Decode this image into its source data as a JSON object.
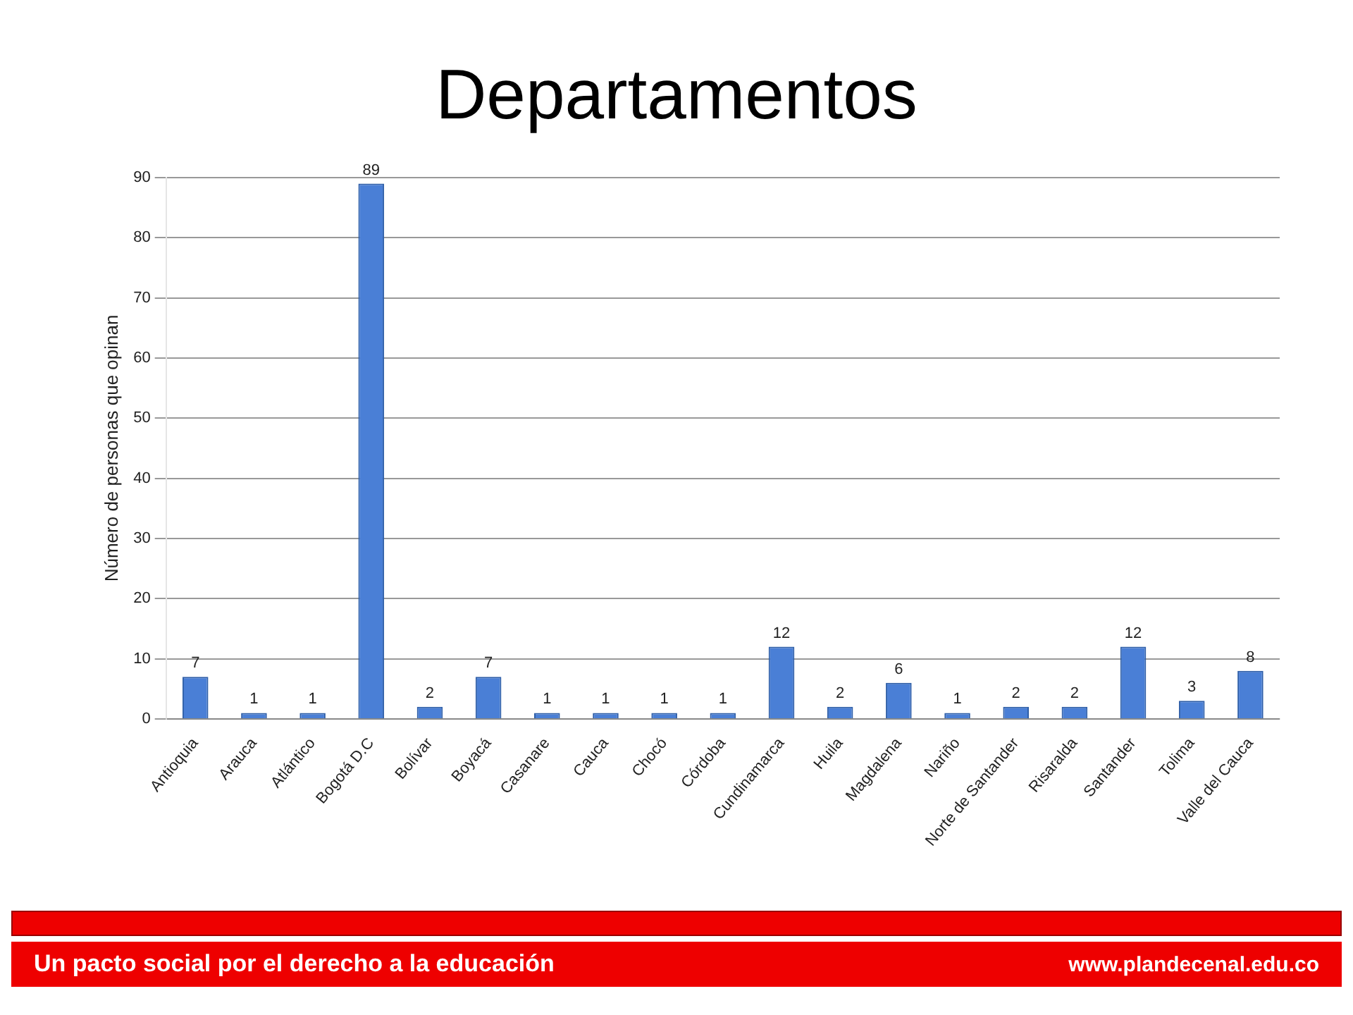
{
  "chart_data": {
    "type": "bar",
    "title": "Departamentos",
    "ylabel": "Número de personas que opinan",
    "categories": [
      "Antioquia",
      "Arauca",
      "Atlántico",
      "Bogotá D.C",
      "Bolívar",
      "Boyacá",
      "Casanare",
      "Cauca",
      "Chocó",
      "Córdoba",
      "Cundinamarca",
      "Huila",
      "Magdalena",
      "Nariño",
      "Norte de Santander",
      "Risaralda",
      "Santander",
      "Tolima",
      "Valle del Cauca"
    ],
    "values": [
      7,
      1,
      1,
      89,
      2,
      7,
      1,
      1,
      1,
      1,
      12,
      2,
      6,
      1,
      2,
      2,
      12,
      3,
      8
    ],
    "color": "#4a7fd6",
    "ylim": [
      0,
      90
    ],
    "yticks": [
      0,
      10,
      20,
      30,
      40,
      50,
      60,
      70,
      80,
      90
    ],
    "grid": "y",
    "data_labels": true,
    "annotations": [
      "Un pacto social por el derecho a la educación",
      "www.plandecenal.edu.co"
    ]
  }
}
